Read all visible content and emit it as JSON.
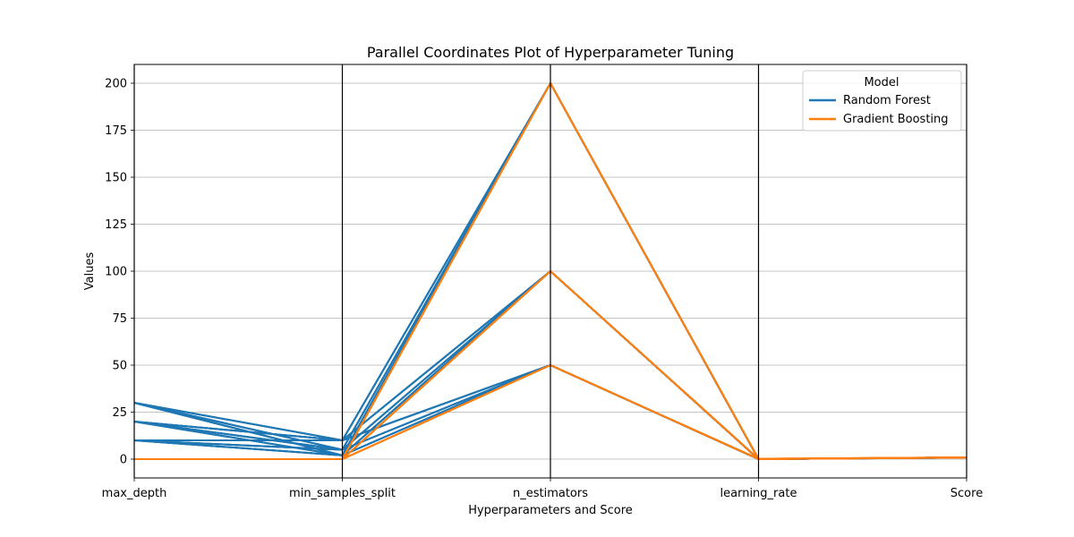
{
  "chart_data": {
    "type": "parallel_coordinates",
    "title": "Parallel Coordinates Plot of Hyperparameter Tuning",
    "xlabel": "Hyperparameters and Score",
    "ylabel": "Values",
    "axes": [
      "max_depth",
      "min_samples_split",
      "n_estimators",
      "learning_rate",
      "Score"
    ],
    "ylim": [
      -10,
      210
    ],
    "yticks": [
      0,
      25,
      50,
      75,
      100,
      125,
      150,
      175,
      200
    ],
    "grid": true,
    "legend": {
      "title": "Model",
      "placement": "upper-right",
      "entries": [
        {
          "name": "Random Forest",
          "color": "#1f77b4"
        },
        {
          "name": "Gradient Boosting",
          "color": "#ff7f0e"
        }
      ]
    },
    "series": [
      {
        "name": "Random Forest",
        "color": "#1f77b4",
        "lines": [
          [
            10,
            2,
            50,
            0,
            0.85
          ],
          [
            10,
            2,
            100,
            0,
            0.86
          ],
          [
            10,
            2,
            200,
            0,
            0.86
          ],
          [
            10,
            5,
            50,
            0,
            0.85
          ],
          [
            10,
            5,
            100,
            0,
            0.86
          ],
          [
            10,
            5,
            200,
            0,
            0.86
          ],
          [
            10,
            10,
            50,
            0,
            0.84
          ],
          [
            10,
            10,
            100,
            0,
            0.85
          ],
          [
            10,
            10,
            200,
            0,
            0.85
          ],
          [
            20,
            2,
            50,
            0,
            0.87
          ],
          [
            20,
            2,
            100,
            0,
            0.88
          ],
          [
            20,
            2,
            200,
            0,
            0.88
          ],
          [
            20,
            5,
            50,
            0,
            0.87
          ],
          [
            20,
            5,
            100,
            0,
            0.88
          ],
          [
            20,
            5,
            200,
            0,
            0.88
          ],
          [
            20,
            10,
            50,
            0,
            0.86
          ],
          [
            20,
            10,
            100,
            0,
            0.87
          ],
          [
            20,
            10,
            200,
            0,
            0.87
          ],
          [
            30,
            2,
            50,
            0,
            0.87
          ],
          [
            30,
            2,
            100,
            0,
            0.88
          ],
          [
            30,
            2,
            200,
            0,
            0.89
          ],
          [
            30,
            5,
            50,
            0,
            0.87
          ],
          [
            30,
            5,
            100,
            0,
            0.88
          ],
          [
            30,
            5,
            200,
            0,
            0.88
          ],
          [
            30,
            10,
            50,
            0,
            0.86
          ],
          [
            30,
            10,
            100,
            0,
            0.87
          ],
          [
            30,
            10,
            200,
            0,
            0.87
          ]
        ]
      },
      {
        "name": "Gradient Boosting",
        "color": "#ff7f0e",
        "lines": [
          [
            null,
            null,
            50,
            0.01,
            0.83
          ],
          [
            null,
            null,
            100,
            0.01,
            0.85
          ],
          [
            null,
            null,
            200,
            0.01,
            0.87
          ],
          [
            null,
            null,
            50,
            0.1,
            0.88
          ],
          [
            null,
            null,
            100,
            0.1,
            0.89
          ],
          [
            null,
            null,
            200,
            0.1,
            0.9
          ],
          [
            null,
            null,
            50,
            0.2,
            0.89
          ],
          [
            null,
            null,
            100,
            0.2,
            0.9
          ],
          [
            null,
            null,
            200,
            0.2,
            0.91
          ]
        ]
      }
    ]
  }
}
